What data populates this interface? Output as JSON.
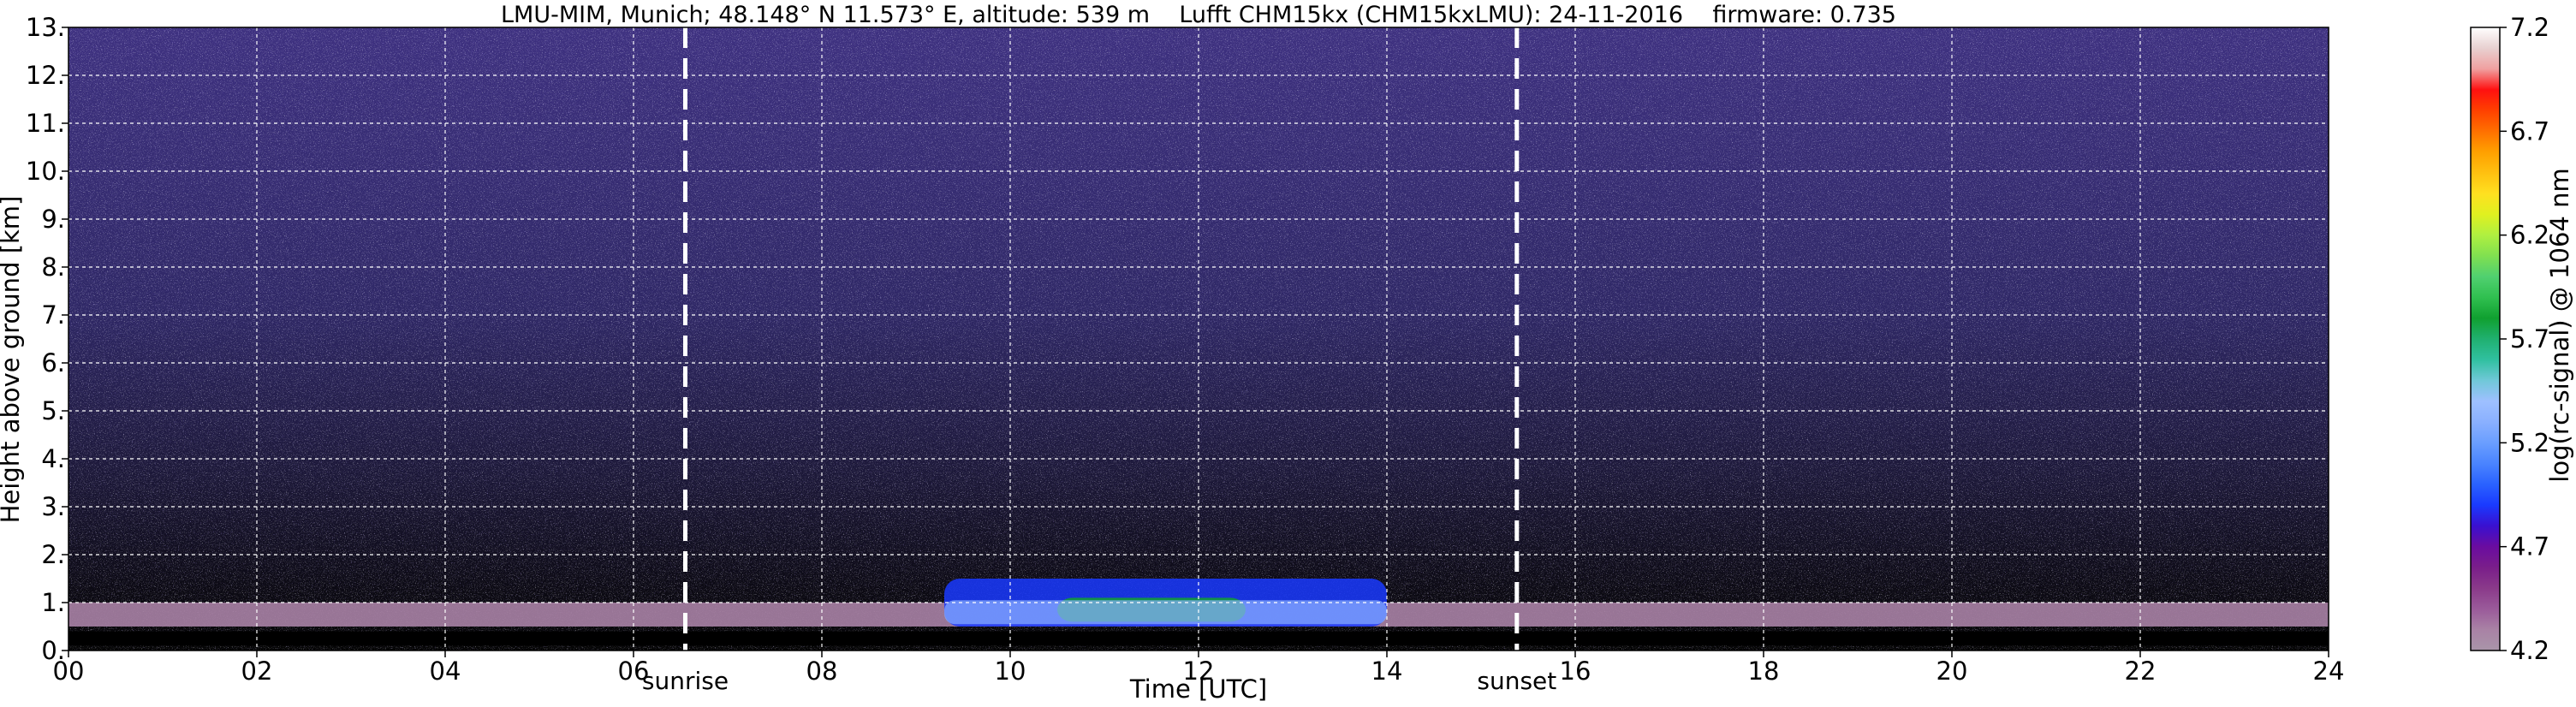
{
  "chart_data": {
    "type": "heatmap",
    "title": "LMU-MIM, Munich; 48.148° N 11.573° E, altitude: 539 m    Lufft CHM15kx (CHM15kxLMU): 24-11-2016    firmware: 0.735",
    "xlabel": "Time [UTC]",
    "ylabel": "Height above ground [km]",
    "xlim": [
      0,
      24
    ],
    "ylim": [
      0,
      13
    ],
    "x_ticks": [
      "00",
      "02",
      "04",
      "06",
      "08",
      "10",
      "12",
      "14",
      "16",
      "18",
      "20",
      "22",
      "24"
    ],
    "y_ticks": [
      "0.",
      "1.",
      "2.",
      "3.",
      "4.",
      "5.",
      "6.",
      "7.",
      "8.",
      "9.",
      "10.",
      "11.",
      "12.",
      "13."
    ],
    "grid": true,
    "markers": [
      {
        "label": "sunrise",
        "time": 6.55
      },
      {
        "label": "sunset",
        "time": 15.38
      }
    ],
    "colorbar": {
      "label": "log(rc-signal) @ 1064 nm",
      "range": [
        4.2,
        7.2
      ],
      "tick_values": [
        4.2,
        4.7,
        5.2,
        5.7,
        6.2,
        6.7,
        7.2
      ],
      "ticks": [
        "4.2",
        "4.7",
        "5.2",
        "5.7",
        "6.2",
        "6.7",
        "7.2"
      ],
      "colors": [
        "#a995a9",
        "#a982a5",
        "#9a5a9a",
        "#8a3a8a",
        "#7a1e8a",
        "#6a0ca0",
        "#3a10d0",
        "#1a3aff",
        "#2a62ff",
        "#4a84ff",
        "#6a9eff",
        "#8ab0ff",
        "#9ec0ff",
        "#70c8d8",
        "#30c0a0",
        "#20b070",
        "#10a030",
        "#30c050",
        "#50d070",
        "#80e050",
        "#b0f040",
        "#e0f020",
        "#ffe020",
        "#ffc010",
        "#ffa000",
        "#ff7000",
        "#ff4000",
        "#ff1010",
        "#f0a0a0",
        "#e8d0d0",
        "#ffffff"
      ]
    },
    "layers": [
      {
        "name": "aerosol layer",
        "t_start": 0,
        "t_end": 24,
        "h_bottom": 0.5,
        "h_top": 1.0
      },
      {
        "name": "enhanced backscatter",
        "t_start": 9.3,
        "t_end": 14.0,
        "h_bottom": 0.5,
        "h_top": 1.5
      },
      {
        "name": "peak backscatter",
        "t_start": 10.5,
        "t_end": 12.5,
        "h_bottom": 0.6,
        "h_top": 1.1
      }
    ]
  }
}
